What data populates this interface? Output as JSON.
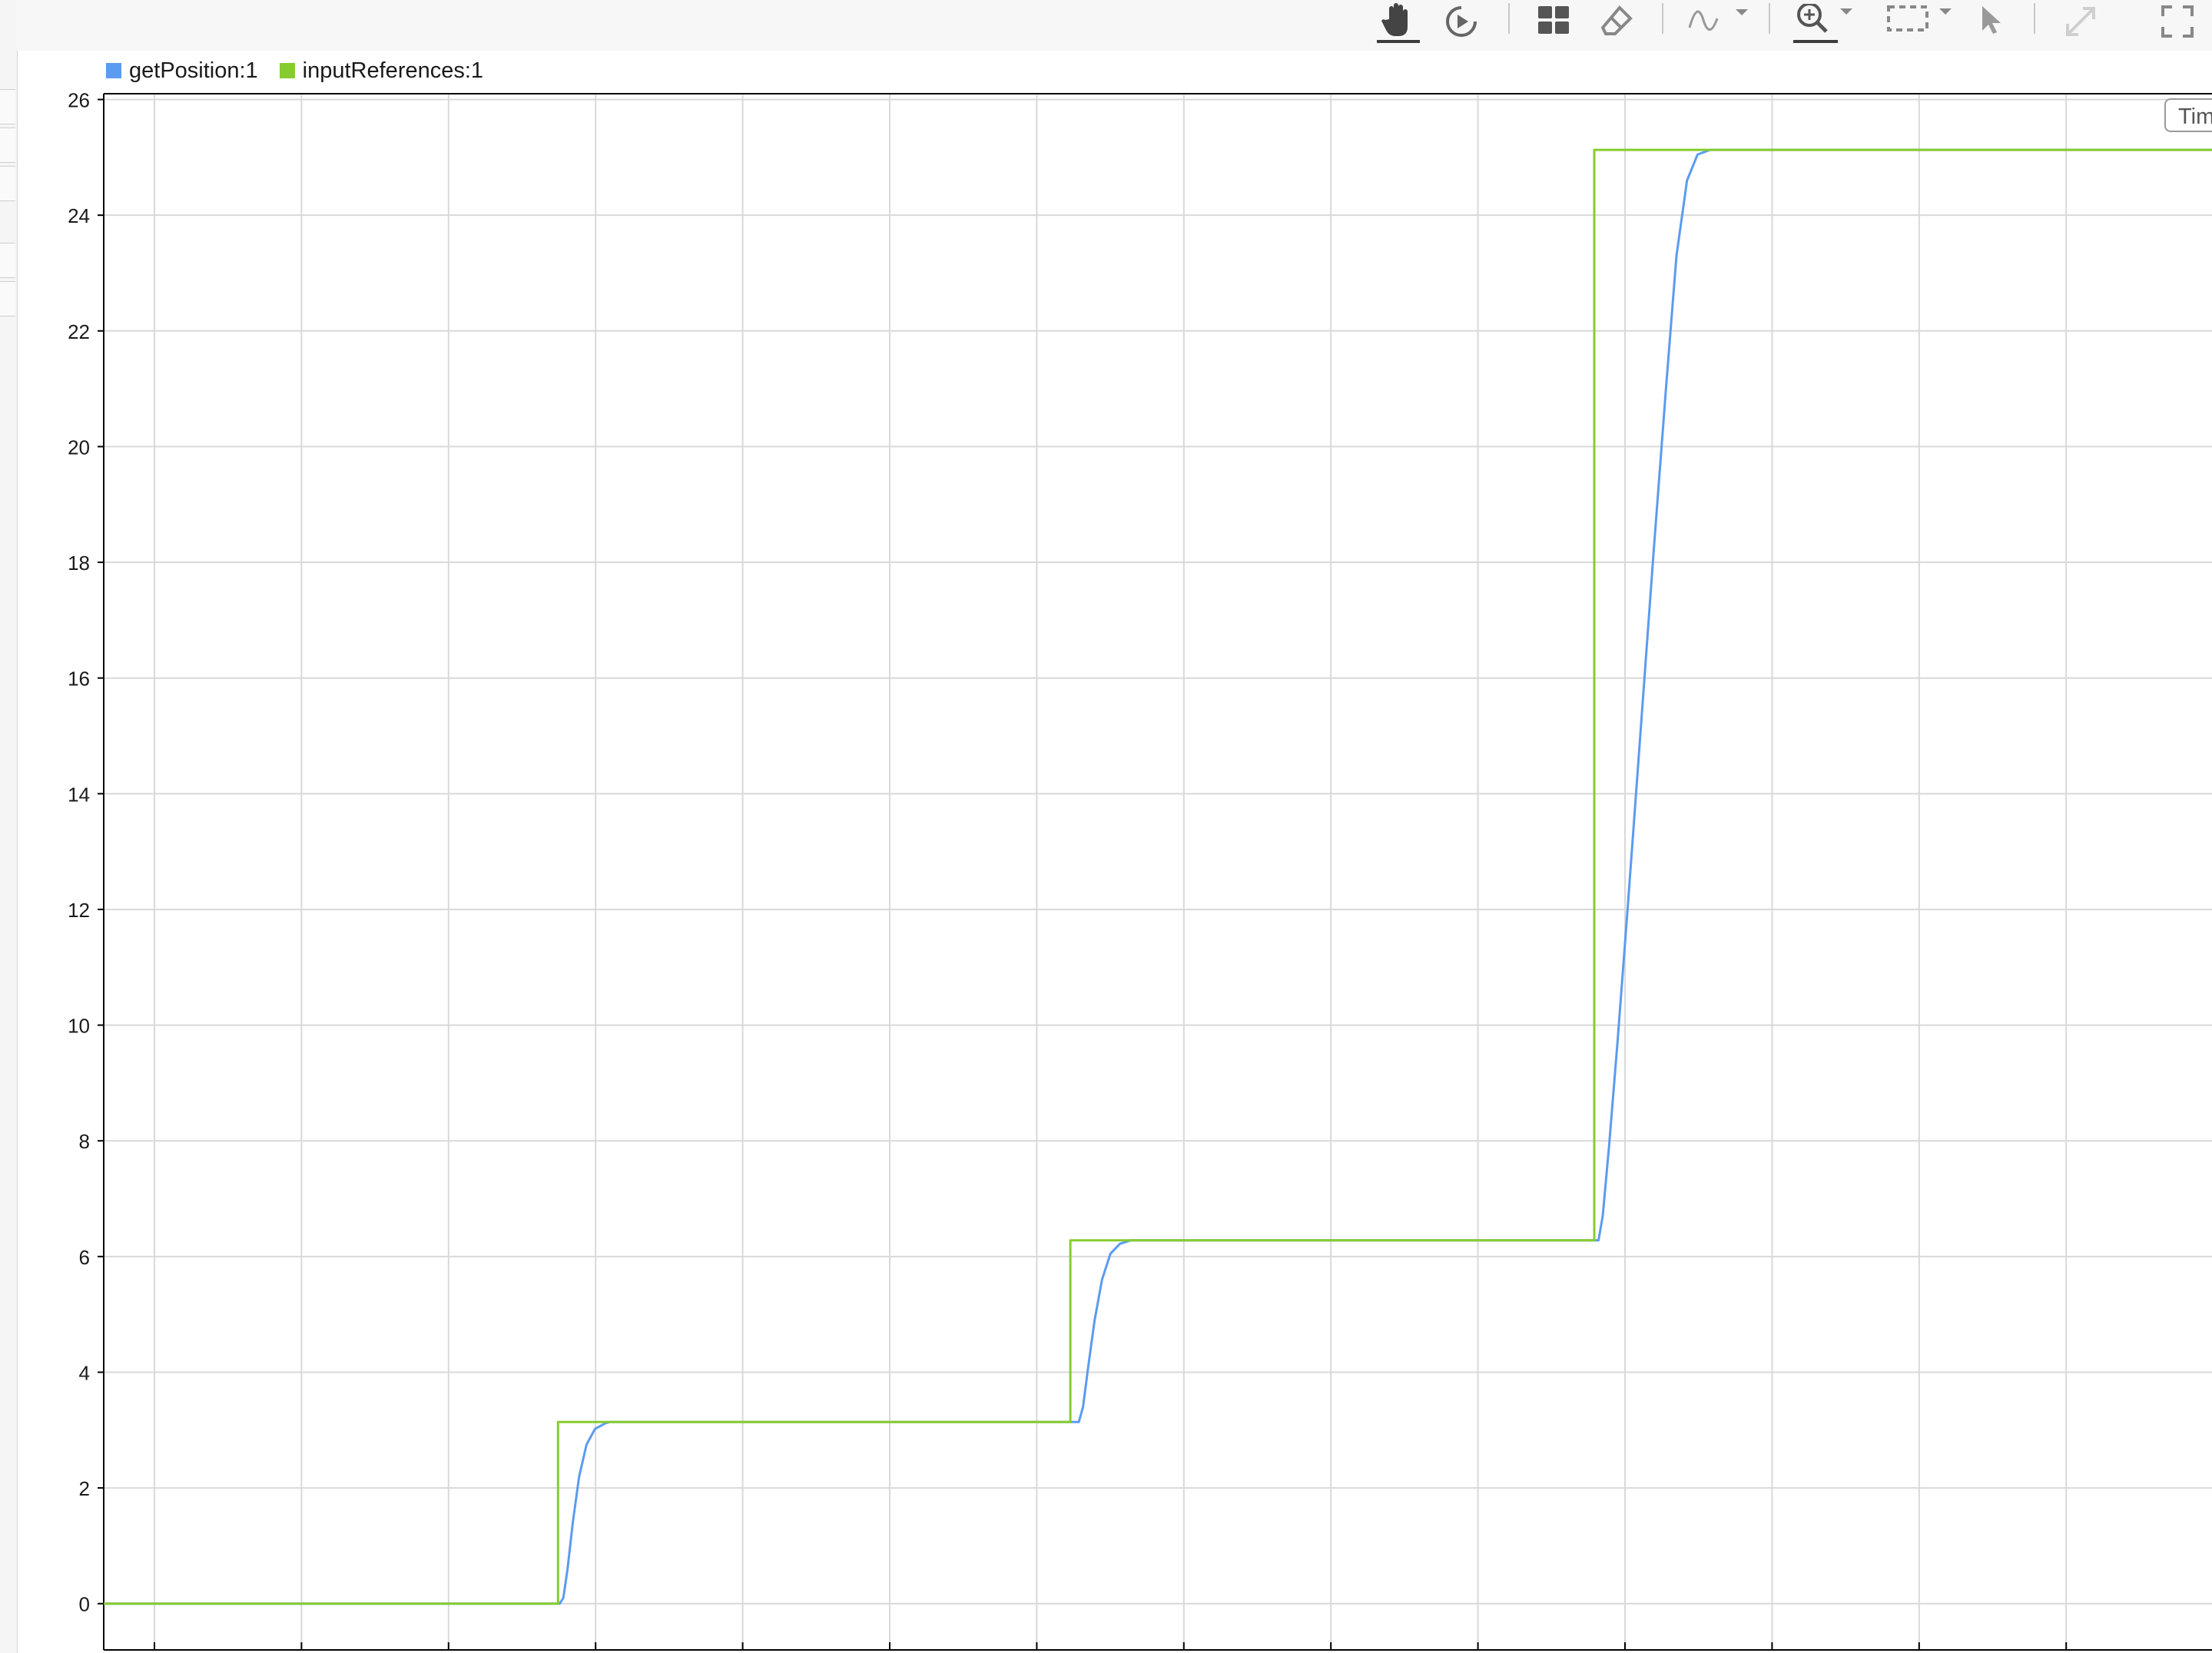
{
  "toolbar": {
    "icons": [
      "pan-hand-icon",
      "play-circle-icon",
      "layout-grid-icon",
      "eraser-icon",
      "signal-wave-icon",
      "zoom-in-icon",
      "fit-to-view-icon",
      "cursor-arrow-icon",
      "expand-diagonal-icon",
      "fullscreen-icon"
    ]
  },
  "time_button": {
    "label": "Tim"
  },
  "colors": {
    "getPosition": "#5b9bf0",
    "inputReferences": "#87cc2e",
    "grid": "#d9d9d9",
    "axis": "#000000"
  },
  "chart_data": {
    "type": "line",
    "title": "",
    "xlabel": "",
    "ylabel": "",
    "ylim": [
      -0.8,
      26.1
    ],
    "xlim": [
      0,
      1
    ],
    "yticks": [
      "0",
      "2",
      "4",
      "6",
      "8",
      "10",
      "12",
      "14",
      "16",
      "18",
      "20",
      "22",
      "24",
      "26"
    ],
    "grid": true,
    "legend_placement": "top-left",
    "series": [
      {
        "name": "getPosition:1",
        "color": "#5b9bf0",
        "points": [
          [
            0.0,
            0.0
          ],
          [
            0.2163,
            0.0
          ],
          [
            0.218,
            0.1
          ],
          [
            0.22,
            0.6
          ],
          [
            0.2225,
            1.4
          ],
          [
            0.2255,
            2.2
          ],
          [
            0.229,
            2.75
          ],
          [
            0.233,
            3.02
          ],
          [
            0.238,
            3.12
          ],
          [
            0.24,
            3.14
          ],
          [
            0.4625,
            3.14
          ],
          [
            0.4645,
            3.4
          ],
          [
            0.467,
            4.1
          ],
          [
            0.47,
            4.9
          ],
          [
            0.4735,
            5.6
          ],
          [
            0.4775,
            6.05
          ],
          [
            0.482,
            6.22
          ],
          [
            0.487,
            6.28
          ],
          [
            0.709,
            6.28
          ],
          [
            0.711,
            6.7
          ],
          [
            0.714,
            7.9
          ],
          [
            0.718,
            9.7
          ],
          [
            0.723,
            12.1
          ],
          [
            0.729,
            15.1
          ],
          [
            0.735,
            18.1
          ],
          [
            0.741,
            21.0
          ],
          [
            0.746,
            23.3
          ],
          [
            0.751,
            24.6
          ],
          [
            0.756,
            25.05
          ],
          [
            0.762,
            25.13
          ],
          [
            1.0,
            25.13
          ]
        ]
      },
      {
        "name": "inputReferences:1",
        "color": "#87cc2e",
        "points": [
          [
            0.0,
            0.0
          ],
          [
            0.2155,
            0.0
          ],
          [
            0.2155,
            3.14
          ],
          [
            0.4585,
            3.14
          ],
          [
            0.4585,
            6.28
          ],
          [
            0.707,
            6.28
          ],
          [
            0.707,
            25.13
          ],
          [
            1.0,
            25.13
          ]
        ]
      }
    ]
  }
}
